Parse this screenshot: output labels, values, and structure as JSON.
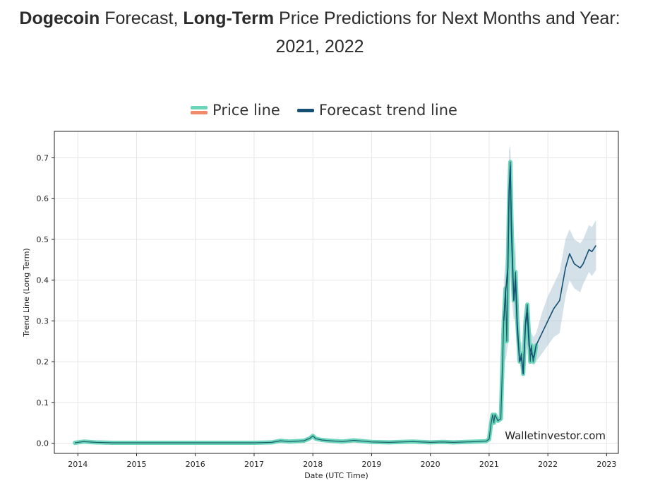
{
  "page": {
    "title_bold_1": "Dogecoin",
    "title_text_1": " Forecast, ",
    "title_bold_2": "Long-Term",
    "title_text_2": " Price Predictions for Next Months and Year: 2021, 2022"
  },
  "chart_data": {
    "type": "line",
    "title": "",
    "xlabel": "Date (UTC Time)",
    "ylabel": "Trend Line (Long Term)",
    "xlim": [
      2013.6,
      2023.2
    ],
    "ylim": [
      -0.025,
      0.765
    ],
    "x_ticks": [
      "2014",
      "2015",
      "2016",
      "2017",
      "2018",
      "2019",
      "2020",
      "2021",
      "2022",
      "2023"
    ],
    "y_ticks": [
      "0.0",
      "0.1",
      "0.2",
      "0.3",
      "0.4",
      "0.5",
      "0.6",
      "0.7"
    ],
    "grid": true,
    "legend_position": "top-center",
    "legend": [
      "Price line",
      "Forecast trend line"
    ],
    "watermark": "Walletinvestor.com",
    "colors": {
      "price_line": "#6cd5b9",
      "price_legend_secondary": "#ef8a6a",
      "forecast_line": "#154f74",
      "forecast_band": "#9fbccd"
    },
    "series": [
      {
        "name": "Price line",
        "x": [
          2013.95,
          2014.1,
          2014.3,
          2014.6,
          2015.0,
          2015.5,
          2016.0,
          2016.5,
          2017.0,
          2017.3,
          2017.45,
          2017.6,
          2017.85,
          2017.95,
          2018.0,
          2018.05,
          2018.15,
          2018.3,
          2018.5,
          2018.7,
          2018.85,
          2019.0,
          2019.3,
          2019.5,
          2019.7,
          2020.0,
          2020.2,
          2020.4,
          2020.6,
          2020.8,
          2020.95,
          2021.0,
          2021.03,
          2021.06,
          2021.08,
          2021.1,
          2021.15,
          2021.2,
          2021.25,
          2021.28,
          2021.3,
          2021.32,
          2021.34,
          2021.36,
          2021.38,
          2021.4,
          2021.42,
          2021.45,
          2021.48,
          2021.52,
          2021.55,
          2021.58,
          2021.62,
          2021.65,
          2021.68,
          2021.7,
          2021.72,
          2021.75,
          2021.78,
          2021.8
        ],
        "y": [
          0.001,
          0.004,
          0.002,
          0.001,
          0.001,
          0.001,
          0.001,
          0.001,
          0.001,
          0.002,
          0.006,
          0.004,
          0.006,
          0.012,
          0.018,
          0.011,
          0.008,
          0.006,
          0.004,
          0.007,
          0.005,
          0.003,
          0.002,
          0.003,
          0.004,
          0.002,
          0.003,
          0.002,
          0.003,
          0.004,
          0.005,
          0.01,
          0.045,
          0.07,
          0.05,
          0.07,
          0.055,
          0.06,
          0.3,
          0.38,
          0.25,
          0.43,
          0.6,
          0.69,
          0.55,
          0.45,
          0.35,
          0.42,
          0.3,
          0.2,
          0.22,
          0.17,
          0.3,
          0.34,
          0.26,
          0.2,
          0.24,
          0.2,
          0.22,
          0.24
        ]
      },
      {
        "name": "Forecast trend line",
        "x": [
          2021.25,
          2021.28,
          2021.32,
          2021.34,
          2021.36,
          2021.38,
          2021.4,
          2021.42,
          2021.45,
          2021.48,
          2021.52,
          2021.55,
          2021.58,
          2021.62,
          2021.65,
          2021.68,
          2021.72,
          2021.76,
          2021.8,
          2021.9,
          2022.0,
          2022.1,
          2022.2,
          2022.3,
          2022.37,
          2022.45,
          2022.55,
          2022.6,
          2022.7,
          2022.75,
          2022.82
        ],
        "y": [
          0.3,
          0.37,
          0.43,
          0.62,
          0.68,
          0.52,
          0.43,
          0.35,
          0.4,
          0.28,
          0.2,
          0.21,
          0.17,
          0.29,
          0.32,
          0.24,
          0.22,
          0.21,
          0.24,
          0.27,
          0.3,
          0.33,
          0.35,
          0.43,
          0.465,
          0.44,
          0.43,
          0.44,
          0.475,
          0.47,
          0.485
        ],
        "lower": [
          0.22,
          0.2,
          0.24,
          0.32,
          0.41,
          0.36,
          0.33,
          0.3,
          0.31,
          0.25,
          0.2,
          0.2,
          0.17,
          0.25,
          0.27,
          0.22,
          0.2,
          0.19,
          0.2,
          0.22,
          0.24,
          0.26,
          0.27,
          0.36,
          0.4,
          0.38,
          0.37,
          0.39,
          0.42,
          0.41,
          0.425
        ],
        "upper": [
          0.4,
          0.45,
          0.55,
          0.72,
          0.73,
          0.66,
          0.5,
          0.42,
          0.5,
          0.33,
          0.24,
          0.25,
          0.22,
          0.32,
          0.34,
          0.29,
          0.27,
          0.26,
          0.27,
          0.32,
          0.36,
          0.39,
          0.42,
          0.5,
          0.525,
          0.5,
          0.49,
          0.5,
          0.535,
          0.53,
          0.548
        ]
      }
    ]
  }
}
